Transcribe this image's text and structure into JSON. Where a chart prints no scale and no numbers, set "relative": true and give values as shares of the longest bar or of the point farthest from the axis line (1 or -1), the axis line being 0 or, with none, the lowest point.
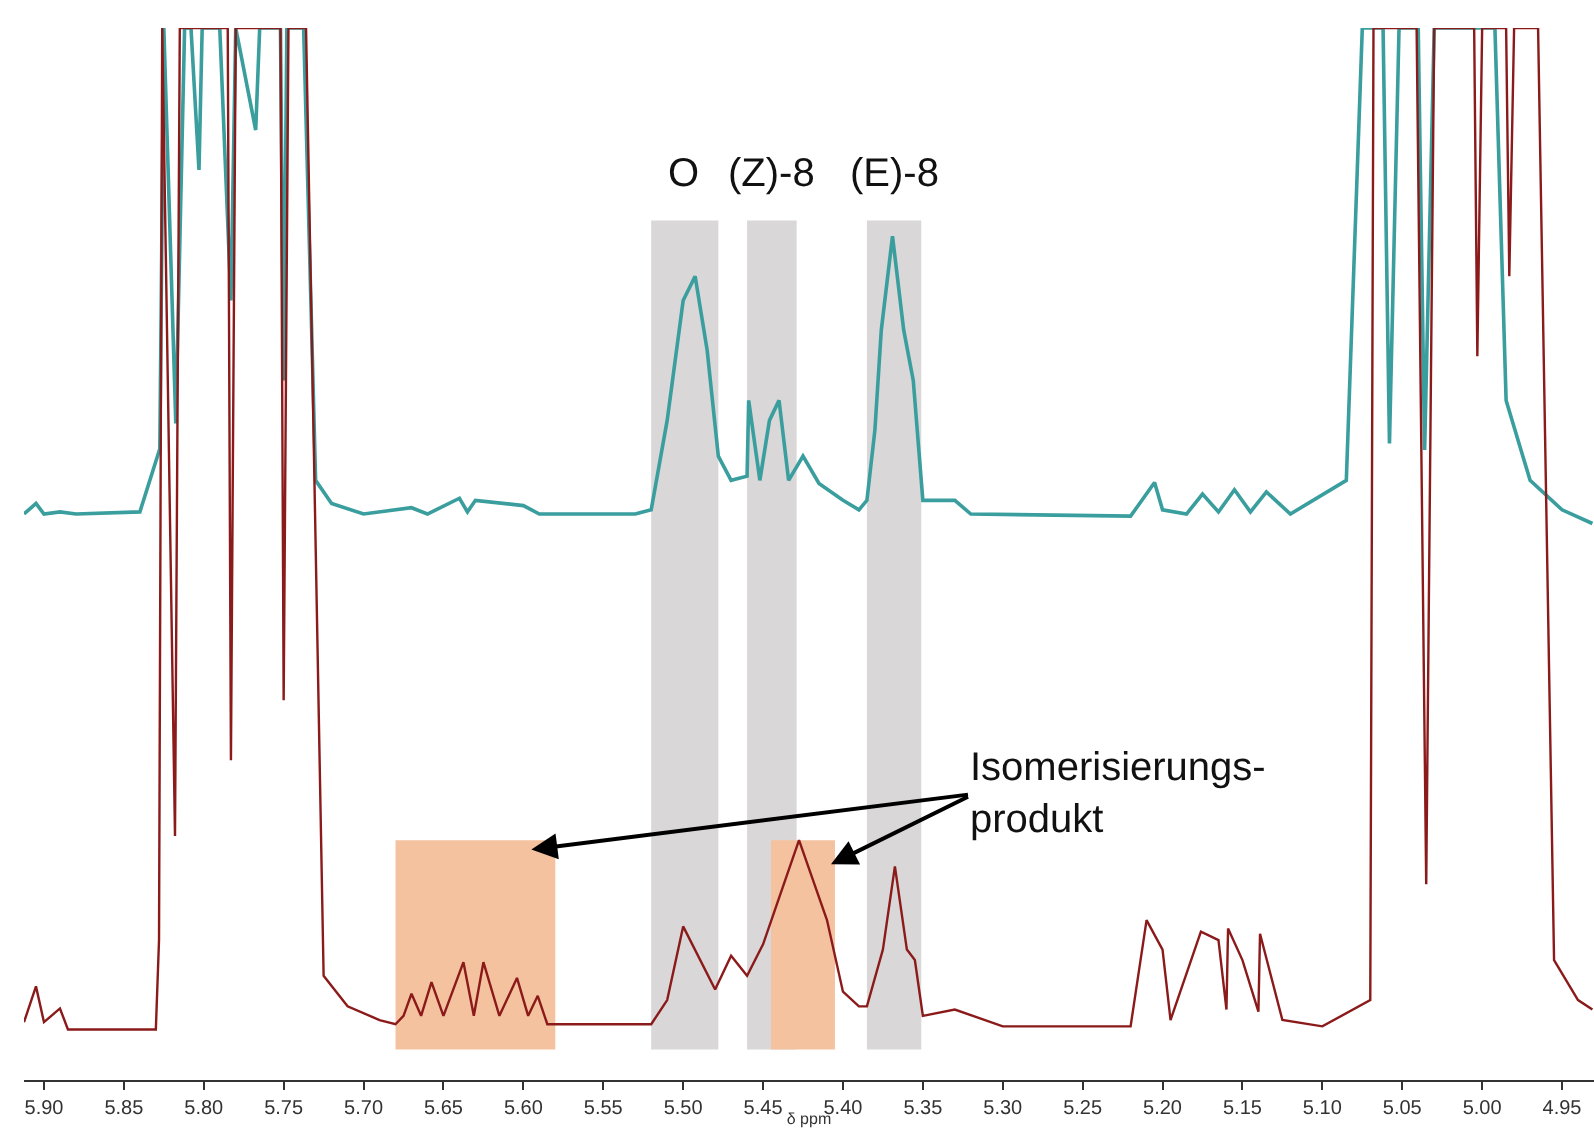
{
  "chart_data": {
    "type": "line",
    "relative": true,
    "xlabel": "δ ppm",
    "xlim": [
      5.9125,
      4.93
    ],
    "xticks": [
      {
        "value": 5.9,
        "label": "5.90"
      },
      5.85,
      {
        "value": 5.8,
        "label": "5.80"
      },
      5.75,
      {
        "value": 5.7,
        "label": "5.70"
      },
      5.65,
      {
        "value": 5.6,
        "label": "5.60"
      },
      5.55,
      {
        "value": 5.5,
        "label": "5.50"
      },
      5.45,
      {
        "value": 5.4,
        "label": "5.40"
      },
      5.35,
      {
        "value": 5.3,
        "label": "5.30"
      },
      5.25,
      {
        "value": 5.2,
        "label": "5.20"
      },
      5.15,
      {
        "value": 5.1,
        "label": "5.10"
      },
      5.05,
      {
        "value": 5.0,
        "label": "5.00"
      },
      4.95
    ],
    "bands": [
      {
        "axis": "x",
        "from": 5.52,
        "to": 5.478,
        "label": "O",
        "color": "#d9d7d8"
      },
      {
        "axis": "x",
        "from": 5.46,
        "to": 5.429,
        "label": "(Z)-8",
        "color": "#d9d7d8"
      },
      {
        "axis": "x",
        "from": 5.385,
        "to": 5.351,
        "label": "(E)-8",
        "color": "#d9d7d8"
      },
      {
        "axis": "x",
        "from": 5.68,
        "to": 5.58,
        "color": "#f4c29f"
      },
      {
        "axis": "x",
        "from": 5.445,
        "to": 5.405,
        "color": "#f4c29f"
      }
    ],
    "annotations": [
      "Isomerisierungs-\nprodukt"
    ],
    "series": [
      {
        "color": "#3a9e9e",
        "x": [
          5.9125,
          5.905,
          5.9,
          5.89,
          5.88,
          5.84,
          5.8275,
          5.825,
          5.8175,
          5.812,
          5.808,
          5.803,
          5.801,
          5.79,
          5.783,
          5.78,
          5.7675,
          5.765,
          5.752,
          5.75,
          5.748,
          5.7375,
          5.73,
          5.72,
          5.7,
          5.67,
          5.66,
          5.64,
          5.635,
          5.63,
          5.6,
          5.59,
          5.53,
          5.52,
          5.51,
          5.5,
          5.4925,
          5.485,
          5.478,
          5.47,
          5.46,
          5.459,
          5.452,
          5.446,
          5.44,
          5.434,
          5.425,
          5.415,
          5.4,
          5.39,
          5.385,
          5.38,
          5.376,
          5.369,
          5.362,
          5.356,
          5.35,
          5.33,
          5.32,
          5.22,
          5.205,
          5.2,
          5.185,
          5.175,
          5.165,
          5.155,
          5.145,
          5.135,
          5.12,
          5.085,
          5.075,
          5.062,
          5.058,
          5.052,
          5.04,
          5.036,
          5.03,
          4.992,
          4.985,
          4.97,
          4.95,
          4.931
        ],
        "values": [
          0.538,
          0.548,
          0.538,
          0.54,
          0.538,
          0.54,
          0.6,
          1,
          0.624,
          1,
          1,
          0.865,
          1,
          1,
          0.741,
          1,
          0.903,
          1,
          1,
          0.665,
          1,
          1,
          0.57,
          0.548,
          0.538,
          0.544,
          0.538,
          0.553,
          0.54,
          0.551,
          0.546,
          0.538,
          0.538,
          0.542,
          0.627,
          0.741,
          0.764,
          0.694,
          0.593,
          0.57,
          0.574,
          0.646,
          0.57,
          0.627,
          0.646,
          0.57,
          0.593,
          0.567,
          0.551,
          0.542,
          0.551,
          0.618,
          0.713,
          0.802,
          0.713,
          0.665,
          0.551,
          0.551,
          0.538,
          0.536,
          0.568,
          0.542,
          0.538,
          0.557,
          0.54,
          0.561,
          0.54,
          0.559,
          0.538,
          0.57,
          1,
          1,
          0.605,
          1,
          1,
          0.599,
          1,
          1,
          0.646,
          0.57,
          0.542,
          0.529
        ]
      },
      {
        "color": "#8b1a1a",
        "x": [
          5.9125,
          5.905,
          5.9,
          5.89,
          5.885,
          5.84,
          5.83,
          5.828,
          5.826,
          5.818,
          5.815,
          5.785,
          5.783,
          5.78,
          5.752,
          5.75,
          5.747,
          5.738,
          5.736,
          5.725,
          5.71,
          5.69,
          5.68,
          5.675,
          5.67,
          5.664,
          5.6575,
          5.65,
          5.6375,
          5.631,
          5.625,
          5.615,
          5.604,
          5.597,
          5.591,
          5.585,
          5.52,
          5.51,
          5.5,
          5.48,
          5.47,
          5.46,
          5.45,
          5.4275,
          5.41,
          5.4,
          5.39,
          5.385,
          5.375,
          5.3675,
          5.36,
          5.355,
          5.35,
          5.33,
          5.3,
          5.22,
          5.21,
          5.2,
          5.195,
          5.176,
          5.165,
          5.16,
          5.159,
          5.15,
          5.14,
          5.139,
          5.125,
          5.1,
          5.07,
          5.068,
          5.041,
          5.035,
          5.03,
          5.005,
          5.003,
          5.0,
          4.985,
          4.983,
          4.98,
          4.967,
          4.965,
          4.955,
          4.94,
          4.931
        ],
        "values": [
          0.055,
          0.089,
          0.055,
          0.068,
          0.048,
          0.048,
          0.048,
          0.133,
          1,
          0.232,
          1,
          1,
          0.304,
          1,
          1,
          0.361,
          1,
          1,
          1,
          0.099,
          0.07,
          0.057,
          0.053,
          0.061,
          0.082,
          0.061,
          0.093,
          0.061,
          0.112,
          0.061,
          0.112,
          0.061,
          0.097,
          0.061,
          0.08,
          0.053,
          0.053,
          0.076,
          0.146,
          0.086,
          0.118,
          0.099,
          0.129,
          0.228,
          0.152,
          0.084,
          0.07,
          0.07,
          0.124,
          0.203,
          0.124,
          0.114,
          0.061,
          0.067,
          0.051,
          0.051,
          0.152,
          0.124,
          0.057,
          0.141,
          0.133,
          0.067,
          0.144,
          0.114,
          0.065,
          0.139,
          0.057,
          0.051,
          0.076,
          1,
          1,
          0.186,
          1,
          1,
          0.688,
          1,
          1,
          0.764,
          1,
          1,
          1,
          0.114,
          0.076,
          0.067
        ]
      }
    ]
  }
}
